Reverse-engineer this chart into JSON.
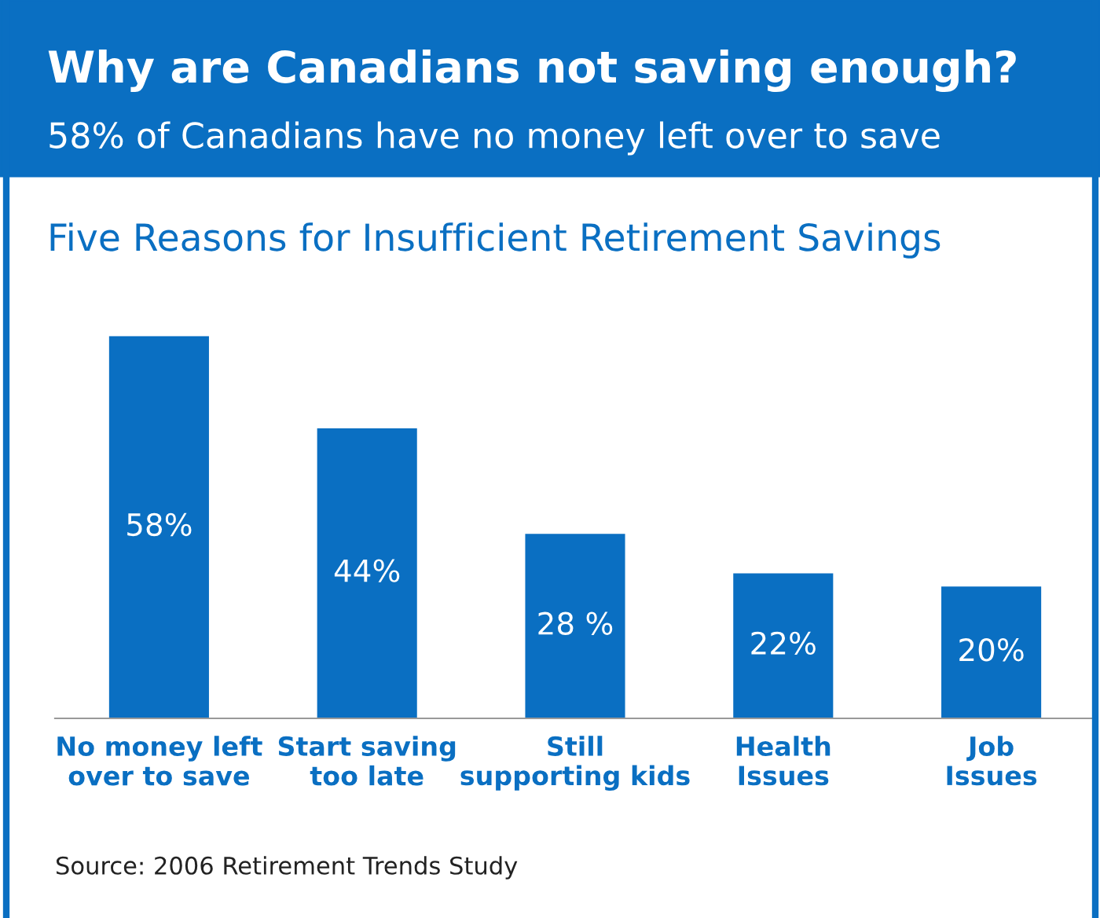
{
  "chart_data": {
    "type": "bar",
    "title": "Five Reasons for Insufficient Retirement Savings",
    "subtitle": "Why are Canadians not saving enough?\n58% of Canadians have no money left over to save",
    "categories": [
      "No money left\nover to save",
      "Start saving\ntoo late",
      "Still\nsupporting kids",
      "Health\nIssues",
      "Job\nIssues"
    ],
    "values": [
      58,
      44,
      28,
      22,
      20
    ],
    "value_labels": [
      "58%",
      "44%",
      "28 %",
      "22%",
      "20%"
    ],
    "color": "#0a6fc2",
    "grid": false,
    "legend": false,
    "annotations": [
      "Source: 2006 Retirement Trends Study"
    ]
  }
}
